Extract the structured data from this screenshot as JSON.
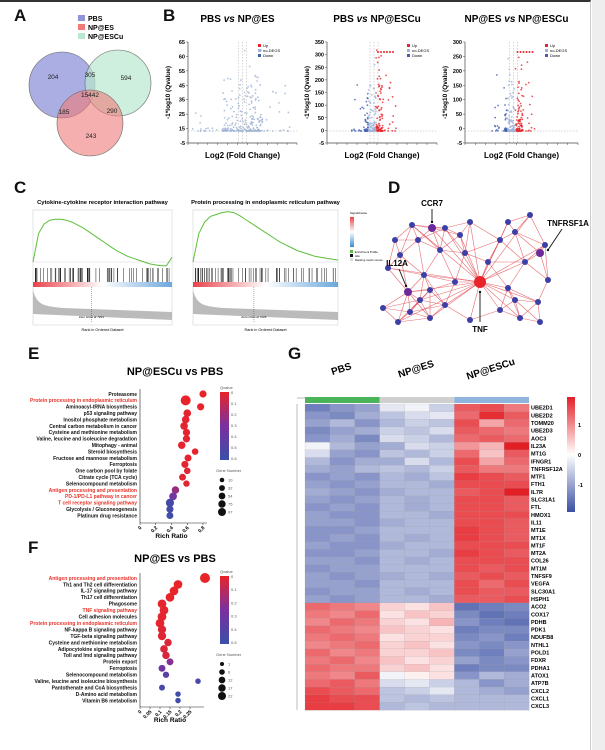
{
  "panels": {
    "A": "A",
    "B": "B",
    "C": "C",
    "D": "D",
    "E": "E",
    "F": "F",
    "G": "G"
  },
  "colors": {
    "pbs": "#8f93d8",
    "np_es": "#f07a7a",
    "np_escu": "#b9e8cf",
    "up": "#e8242a",
    "down": "#3f5fb0",
    "nodeg": "#9fb3d6"
  },
  "chart_data": [
    {
      "id": "venn",
      "type": "venn",
      "legend": [
        "PBS",
        "NP@ES",
        "NP@ESCu"
      ],
      "regions": {
        "PBS_only": "204",
        "PBS_ESCu": "305",
        "ESCu_only": "594",
        "all": "15442",
        "PBS_ES": "185",
        "ES_ESCu": "290",
        "ES_only": "243"
      }
    },
    {
      "id": "volcano1",
      "type": "scatter",
      "title": "PBS vs NP@ES",
      "title_a": "PBS ",
      "title_vs": "vs",
      "title_b": " NP@ES",
      "xlabel": "Log2 (Fold Change)",
      "ylabel": "-1*log10 (Qvalue)",
      "yticks": [
        "65",
        "60",
        "55",
        "45",
        "35",
        "25",
        "15",
        "-5"
      ],
      "legend": [
        "Up",
        "no-DEGS",
        "Down"
      ],
      "summary": {
        "up": 1,
        "down": 0,
        "max_y": 63
      }
    },
    {
      "id": "volcano2",
      "type": "scatter",
      "title": "PBS vs NP@ESCu",
      "title_a": "PBS ",
      "title_vs": "vs",
      "title_b": " NP@ESCu",
      "xlabel": "Log2 (Fold Change)",
      "ylabel": "-1*log10 (Qvalue)",
      "yticks": [
        "350",
        "300",
        "250",
        "200",
        "150",
        "100",
        "50",
        "0",
        "-5"
      ],
      "ylim": [
        -5,
        350
      ],
      "legend": [
        "Up",
        "no-DEGS",
        "Down"
      ],
      "summary": {
        "max_y": 300
      }
    },
    {
      "id": "volcano3",
      "type": "scatter",
      "title": "NP@ES vs NP@ESCu",
      "title_a": "NP@ES ",
      "title_vs": "vs",
      "title_b": " NP@ESCu",
      "xlabel": "Log2 (Fold Change)",
      "ylabel": "-1*log10 (Qvalue)",
      "yticks": [
        "300",
        "250",
        "200",
        "150",
        "100",
        "50",
        "0",
        "-5"
      ],
      "ylim": [
        -5,
        300
      ],
      "legend": [
        "Up",
        "no-DEGS",
        "Down"
      ],
      "summary": {
        "max_y": 300
      }
    },
    {
      "id": "gsea1",
      "type": "line",
      "title": "Cytokine-cytokine receptor interaction pathway",
      "xlabel": "Rank in Ordered Dataset",
      "zero_cross": "Zero cross at 7224",
      "es_curve": [
        0,
        0.3,
        0.4,
        0.44,
        0.45,
        0.45,
        0.44,
        0.42,
        0.39,
        0.36,
        0.32,
        0.28,
        0.24,
        0.2,
        0.16,
        0.12,
        0.09,
        0.06,
        0.04,
        0.02,
        0.0,
        -0.02,
        -0.03,
        -0.04,
        -0.04,
        0.05
      ]
    },
    {
      "id": "gsea2",
      "type": "line",
      "title": "Protein processing in endoplasmic reticulum pathway",
      "xlabel": "Rank in Ordered Dataset",
      "zero_cross": "Zero cross at 7224",
      "es_curve": [
        0,
        0.3,
        0.42,
        0.48,
        0.5,
        0.52,
        0.53,
        0.52,
        0.49,
        0.45,
        0.41,
        0.37,
        0.33,
        0.29,
        0.25,
        0.21,
        0.18,
        0.15,
        0.12,
        0.1,
        0.08,
        0.06,
        0.05,
        0.04,
        0.03,
        0.02
      ]
    },
    {
      "id": "gsea_legend",
      "type": "legend",
      "title": "Signal2noise",
      "items": [
        "Enrichment Profile",
        "Hits",
        "Ranking metric scores"
      ]
    },
    {
      "id": "network",
      "type": "network",
      "labels": {
        "ccr7": "CCR7",
        "tnfrsf1a": "TNFRSF1A",
        "il12a": "IL12A",
        "tnf": "TNF"
      }
    },
    {
      "id": "dotE",
      "type": "scatter",
      "title": "NP@ESCu vs PBS",
      "xlabel": "Rich Ratio",
      "xticks": [
        0,
        0.2,
        0.4,
        0.6,
        0.8
      ],
      "xlim": [
        0,
        0.8
      ],
      "q_legend_title": "Qvalue",
      "q_ticks": [
        "0",
        "0.1",
        "0.2",
        "0.3",
        "0.4",
        "0.5",
        "0.6"
      ],
      "q_max": 0.6,
      "size_legend_title": "Gene Number",
      "size_ticks": [
        10,
        32,
        54,
        75,
        97
      ],
      "terms": [
        {
          "name": "Proteasome",
          "rich": 0.8,
          "q": 0.0,
          "n": 30,
          "highlight": false
        },
        {
          "name": "Protein processing in endoplasmic reticulum",
          "rich": 0.58,
          "q": 0.0,
          "n": 97,
          "highlight": true
        },
        {
          "name": "Aminoacyl-tRNA biosynthesis",
          "rich": 0.77,
          "q": 0.0,
          "n": 30,
          "highlight": false
        },
        {
          "name": "p53 signaling pathway",
          "rich": 0.6,
          "q": 0.01,
          "n": 40,
          "highlight": false
        },
        {
          "name": "Inositol phosphate metabolism",
          "rich": 0.58,
          "q": 0.01,
          "n": 38,
          "highlight": false
        },
        {
          "name": "Central carbon metabolism in cancer",
          "rich": 0.56,
          "q": 0.01,
          "n": 38,
          "highlight": false
        },
        {
          "name": "Cysteine and methionine metabolism",
          "rich": 0.59,
          "q": 0.01,
          "n": 32,
          "highlight": false
        },
        {
          "name": "Valine, leucine and isoleucine degradation",
          "rich": 0.59,
          "q": 0.01,
          "n": 32,
          "highlight": false
        },
        {
          "name": "Mitophagy - animal",
          "rich": 0.53,
          "q": 0.01,
          "n": 36,
          "highlight": false
        },
        {
          "name": "Steroid biosynthesis",
          "rich": 0.7,
          "q": 0.01,
          "n": 20,
          "highlight": false
        },
        {
          "name": "Fructose and mannose metabolism",
          "rich": 0.61,
          "q": 0.01,
          "n": 28,
          "highlight": false
        },
        {
          "name": "Ferroptosis",
          "rich": 0.57,
          "q": 0.01,
          "n": 30,
          "highlight": false
        },
        {
          "name": "One carbon pool by folate",
          "rich": 0.6,
          "q": 0.02,
          "n": 22,
          "highlight": false
        },
        {
          "name": "Citrate cycle (TCA cycle)",
          "rich": 0.54,
          "q": 0.02,
          "n": 26,
          "highlight": false
        },
        {
          "name": "Selenocompound metabolism",
          "rich": 0.59,
          "q": 0.02,
          "n": 18,
          "highlight": false
        },
        {
          "name": "Antigen processing and presentation",
          "rich": 0.45,
          "q": 0.22,
          "n": 36,
          "highlight": true
        },
        {
          "name": "PD-1/PD-L1 pathway in cancer",
          "rich": 0.42,
          "q": 0.35,
          "n": 40,
          "highlight": true
        },
        {
          "name": "T cell receptor signaling pathway",
          "rich": 0.38,
          "q": 0.55,
          "n": 50,
          "highlight": true
        },
        {
          "name": "Glycolysis / Gluconeogenesis",
          "rich": 0.38,
          "q": 0.56,
          "n": 30,
          "highlight": false
        },
        {
          "name": "Platinum drug resistance",
          "rich": 0.38,
          "q": 0.57,
          "n": 26,
          "highlight": false
        }
      ]
    },
    {
      "id": "dotF",
      "type": "scatter",
      "title": "NP@ES vs PBS",
      "xlabel": "Rich Ratio",
      "xticks": [
        0,
        0.05,
        0.1,
        0.15,
        0.2,
        0.25
      ],
      "xlim": [
        0,
        0.3
      ],
      "q_legend_title": "Qvalue",
      "q_ticks": [
        "0",
        "0.1",
        "0.2",
        "0.3",
        "0.4",
        "0.5"
      ],
      "q_max": 0.5,
      "size_legend_title": "Gene Number",
      "size_ticks": [
        1,
        6,
        12,
        17,
        22
      ],
      "terms": [
        {
          "name": "Antigen processing and presentation",
          "rich": 0.325,
          "q": 0.0,
          "n": 22,
          "highlight": true
        },
        {
          "name": "Th1 and Th2 cell differentiation",
          "rich": 0.19,
          "q": 0.0,
          "n": 14,
          "highlight": false
        },
        {
          "name": "IL-17 signaling pathway",
          "rich": 0.17,
          "q": 0.0,
          "n": 14,
          "highlight": false
        },
        {
          "name": "Th17 cell differentiation",
          "rich": 0.15,
          "q": 0.0,
          "n": 14,
          "highlight": false
        },
        {
          "name": "Phagosome",
          "rich": 0.11,
          "q": 0.01,
          "n": 14,
          "highlight": false
        },
        {
          "name": "TNF signaling pathway",
          "rich": 0.12,
          "q": 0.01,
          "n": 14,
          "highlight": true
        },
        {
          "name": "Cell adhesion molecules",
          "rich": 0.11,
          "q": 0.01,
          "n": 14,
          "highlight": false
        },
        {
          "name": "Protein processing in endoplasmic reticulum",
          "rich": 0.1,
          "q": 0.01,
          "n": 14,
          "highlight": true
        },
        {
          "name": "NF-kappa B signaling pathway",
          "rich": 0.11,
          "q": 0.02,
          "n": 12,
          "highlight": false
        },
        {
          "name": "TGF-beta signaling pathway",
          "rich": 0.11,
          "q": 0.02,
          "n": 12,
          "highlight": false
        },
        {
          "name": "Cysteine and methionine metabolism",
          "rich": 0.14,
          "q": 0.03,
          "n": 8,
          "highlight": false
        },
        {
          "name": "Adipocytokine signaling pathway",
          "rich": 0.12,
          "q": 0.03,
          "n": 9,
          "highlight": false
        },
        {
          "name": "Toll and Imd signaling pathway",
          "rich": 0.13,
          "q": 0.04,
          "n": 8,
          "highlight": false
        },
        {
          "name": "Protein export",
          "rich": 0.15,
          "q": 0.22,
          "n": 6,
          "highlight": false
        },
        {
          "name": "Ferroptosis",
          "rich": 0.11,
          "q": 0.28,
          "n": 6,
          "highlight": false
        },
        {
          "name": "Selenocompound metabolism",
          "rich": 0.13,
          "q": 0.38,
          "n": 4,
          "highlight": false
        },
        {
          "name": "Valine, leucine and isoleucine biosynthesis",
          "rich": 0.29,
          "q": 0.44,
          "n": 2,
          "highlight": false
        },
        {
          "name": "Pantothenate and CoA biosynthesis",
          "rich": 0.11,
          "q": 0.45,
          "n": 3,
          "highlight": false
        },
        {
          "name": "D-Amino acid metabolism",
          "rich": 0.19,
          "q": 0.48,
          "n": 2,
          "highlight": false
        },
        {
          "name": "Vitamin B6 metabolism",
          "rich": 0.19,
          "q": 0.48,
          "n": 2,
          "highlight": false
        }
      ]
    },
    {
      "id": "heatmap",
      "type": "heatmap",
      "groups": [
        "PBS",
        "NP@ES",
        "NP@ESCu"
      ],
      "group_colors": [
        "#4bb35a",
        "#cfcfcf",
        "#8fb4dd"
      ],
      "colorbar_ticks": [
        "1",
        "0",
        "-1"
      ],
      "clim": [
        -1.5,
        1.5
      ],
      "genes": [
        "UBE2D1",
        "UBE2D2",
        "TOMM20",
        "UBE2D3",
        "AOC3",
        "IL23A",
        "MT1G",
        "IFNGR1",
        "TNFRSF12A",
        "MTF1",
        "FTH1",
        "IL7R",
        "SLC31A1",
        "FTL",
        "HMOX1",
        "IL11",
        "MT1E",
        "MT1X",
        "MT1F",
        "MT2A",
        "COL26",
        "MT1M",
        "TNFSF9",
        "VEGFA",
        "SLC30A1",
        "HSPH1",
        "ACO2",
        "COX17",
        "PDHB",
        "PDK1",
        "NDUFB8",
        "NTHL1",
        "POLD1",
        "FDXR",
        "PDHA1",
        "ATOX1",
        "ATP7B",
        "CXCL2",
        "CXCL1",
        "CXCL3"
      ],
      "values": [
        [
          -1.1,
          -0.9,
          -0.8,
          -0.2,
          -0.1,
          -0.4,
          1.1,
          1.2,
          0.9
        ],
        [
          -0.9,
          -1.0,
          -0.7,
          -0.5,
          -0.3,
          -0.2,
          1.0,
          1.4,
          1.1
        ],
        [
          -0.8,
          -0.6,
          -0.9,
          -0.6,
          -0.4,
          -0.5,
          1.2,
          0.6,
          1.0
        ],
        [
          -1.0,
          -0.8,
          -0.7,
          -0.4,
          -0.5,
          -0.3,
          1.1,
          1.0,
          0.9
        ],
        [
          -0.9,
          -0.7,
          -1.0,
          -0.3,
          -0.4,
          -0.6,
          1.0,
          1.1,
          1.0
        ],
        [
          -0.1,
          -0.6,
          -0.8,
          -0.7,
          -0.3,
          -0.4,
          0.7,
          0.5,
          1.5
        ],
        [
          -0.3,
          -0.8,
          -0.9,
          -0.5,
          -0.6,
          -0.4,
          1.0,
          0.4,
          1.1
        ],
        [
          -0.6,
          -0.9,
          -0.7,
          -0.7,
          -0.3,
          -0.6,
          1.2,
          0.6,
          1.0
        ],
        [
          -0.7,
          -0.8,
          -0.6,
          -0.5,
          -0.6,
          -0.4,
          1.1,
          0.9,
          0.9
        ],
        [
          -0.9,
          -0.8,
          -0.9,
          -0.6,
          -0.7,
          -0.5,
          1.3,
          1.2,
          1.1
        ],
        [
          -0.8,
          -0.9,
          -0.8,
          -0.6,
          -0.6,
          -0.7,
          1.2,
          1.2,
          1.2
        ],
        [
          -0.7,
          -0.8,
          -0.9,
          -0.7,
          -0.6,
          -0.6,
          1.1,
          1.2,
          1.5
        ],
        [
          -0.8,
          -0.9,
          -0.8,
          -0.6,
          -0.7,
          -0.6,
          1.2,
          1.2,
          1.1
        ],
        [
          -0.9,
          -0.8,
          -0.9,
          -0.6,
          -0.7,
          -0.6,
          1.2,
          1.2,
          1.1
        ],
        [
          -0.8,
          -0.9,
          -0.9,
          -0.6,
          -0.6,
          -0.7,
          1.2,
          1.2,
          1.2
        ],
        [
          -0.8,
          -0.8,
          -0.9,
          -0.7,
          -0.6,
          -0.6,
          1.2,
          1.2,
          1.1
        ],
        [
          -0.9,
          -0.9,
          -0.8,
          -0.6,
          -0.6,
          -0.6,
          1.3,
          1.2,
          1.1
        ],
        [
          -0.9,
          -0.8,
          -0.9,
          -0.6,
          -0.7,
          -0.6,
          1.3,
          1.2,
          1.1
        ],
        [
          -0.8,
          -0.9,
          -0.9,
          -0.7,
          -0.6,
          -0.6,
          1.2,
          1.2,
          1.2
        ],
        [
          -0.9,
          -0.9,
          -0.8,
          -0.6,
          -0.6,
          -0.7,
          1.3,
          1.2,
          1.1
        ],
        [
          -0.8,
          -0.8,
          -0.9,
          -0.6,
          -0.7,
          -0.6,
          1.2,
          1.2,
          1.2
        ],
        [
          -0.9,
          -0.8,
          -0.8,
          -0.6,
          -0.6,
          -0.6,
          1.2,
          1.1,
          1.2
        ],
        [
          -0.8,
          -0.9,
          -0.8,
          -0.7,
          -0.6,
          -0.7,
          1.1,
          1.2,
          1.1
        ],
        [
          -0.8,
          -0.8,
          -0.9,
          -0.6,
          -0.6,
          -0.6,
          1.2,
          1.0,
          1.2
        ],
        [
          -0.9,
          -0.8,
          -0.8,
          -0.6,
          -0.7,
          -0.6,
          1.2,
          1.1,
          1.1
        ],
        [
          -0.8,
          -0.9,
          -0.8,
          -0.6,
          -0.6,
          -0.7,
          1.1,
          1.1,
          1.2
        ],
        [
          1.0,
          0.9,
          0.8,
          0.3,
          0.2,
          0.4,
          -1.2,
          -1.1,
          -1.0
        ],
        [
          0.9,
          0.8,
          1.0,
          0.2,
          0.4,
          0.3,
          -1.0,
          -1.2,
          -1.1
        ],
        [
          0.8,
          1.0,
          0.9,
          0.3,
          0.2,
          0.5,
          -0.9,
          -1.1,
          -1.2
        ],
        [
          1.0,
          0.9,
          0.8,
          0.4,
          0.3,
          0.2,
          -1.1,
          -1.0,
          -1.0
        ],
        [
          0.9,
          1.0,
          0.9,
          0.2,
          0.3,
          0.3,
          -1.0,
          -0.9,
          -1.1
        ],
        [
          0.8,
          0.9,
          1.0,
          0.3,
          0.4,
          0.2,
          -0.9,
          -1.0,
          -0.9
        ],
        [
          1.0,
          0.8,
          0.9,
          0.3,
          0.3,
          0.4,
          -1.0,
          -1.1,
          -0.8
        ],
        [
          0.9,
          1.0,
          0.8,
          0.4,
          0.2,
          0.3,
          -0.8,
          -1.0,
          -0.9
        ],
        [
          1.0,
          0.9,
          0.9,
          0.3,
          0.4,
          0.2,
          -1.1,
          -1.0,
          -1.0
        ],
        [
          0.9,
          0.8,
          1.1,
          -0.1,
          0.1,
          0.2,
          -0.9,
          -0.6,
          -0.7
        ],
        [
          1.0,
          1.1,
          0.9,
          -0.3,
          -0.2,
          -0.4,
          -0.6,
          -0.9,
          -0.7
        ],
        [
          1.2,
          1.1,
          1.0,
          -0.5,
          -0.4,
          -0.2,
          -0.6,
          -0.7,
          -0.8
        ],
        [
          1.3,
          1.2,
          1.2,
          -0.5,
          -0.6,
          -0.5,
          -0.6,
          -0.6,
          -0.6
        ],
        [
          1.3,
          1.3,
          1.2,
          -0.6,
          -0.5,
          -0.6,
          -0.6,
          -0.6,
          -0.6
        ]
      ]
    }
  ]
}
